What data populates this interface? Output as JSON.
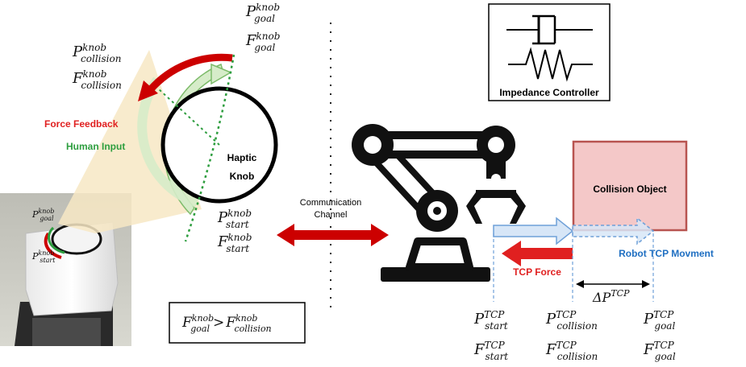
{
  "haptic": {
    "knob_label_line1": "Haptic",
    "knob_label_line2": "Knob",
    "force_feedback_label": "Force Feedback",
    "human_input_label": "Human Input",
    "inset_goal_label": "P",
    "inset_goal_sup": "knob",
    "inset_goal_sub": "goal",
    "inset_start_label": "P",
    "inset_start_sup": "knob",
    "inset_start_sub": "start"
  },
  "knob_math": {
    "p_goal": {
      "base": "P",
      "sup": "knob",
      "sub": "goal"
    },
    "f_goal": {
      "base": "F",
      "sup": "knob",
      "sub": "goal"
    },
    "p_collision": {
      "base": "P",
      "sup": "knob",
      "sub": "collision"
    },
    "f_collision": {
      "base": "F",
      "sup": "knob",
      "sub": "collision"
    },
    "p_start": {
      "base": "P",
      "sup": "knob",
      "sub": "start"
    },
    "f_start": {
      "base": "F",
      "sup": "knob",
      "sub": "start"
    }
  },
  "inequality": {
    "lhs": {
      "base": "F",
      "sup": "knob",
      "sub": "goal"
    },
    "op": ">",
    "rhs": {
      "base": "F",
      "sup": "knob",
      "sub": "collision"
    }
  },
  "channel": {
    "line1": "Communication",
    "line2": "Channel"
  },
  "impedance": {
    "label": "Impedance Controller"
  },
  "collision": {
    "label": "Collision Object"
  },
  "robot": {
    "movement_label": "Robot TCP Movment",
    "force_label": "TCP Force",
    "delta_label": {
      "base": "ΔP",
      "sup": "TCP"
    }
  },
  "tcp_math": {
    "p_start": {
      "base": "P",
      "sup": "TCP",
      "sub": "start"
    },
    "f_start": {
      "base": "F",
      "sup": "TCP",
      "sub": "start"
    },
    "p_collision": {
      "base": "P",
      "sup": "TCP",
      "sub": "collision"
    },
    "f_collision": {
      "base": "F",
      "sup": "TCP",
      "sub": "collision"
    },
    "p_goal": {
      "base": "P",
      "sup": "TCP",
      "sub": "goal"
    },
    "f_goal": {
      "base": "F",
      "sup": "TCP",
      "sub": "goal"
    }
  },
  "colors": {
    "force_red": "#cc0000",
    "human_green": "#2e9e3f",
    "green_fill": "#d6ecc9",
    "green_stroke": "#7dbb6a",
    "movement_blue": "#1f6fc2",
    "tcp_arrow_fill": "#d7e6f7",
    "collision_fill": "#f4c8c8",
    "collision_stroke": "#b85450",
    "beam_fill": "#f7e7c4"
  }
}
